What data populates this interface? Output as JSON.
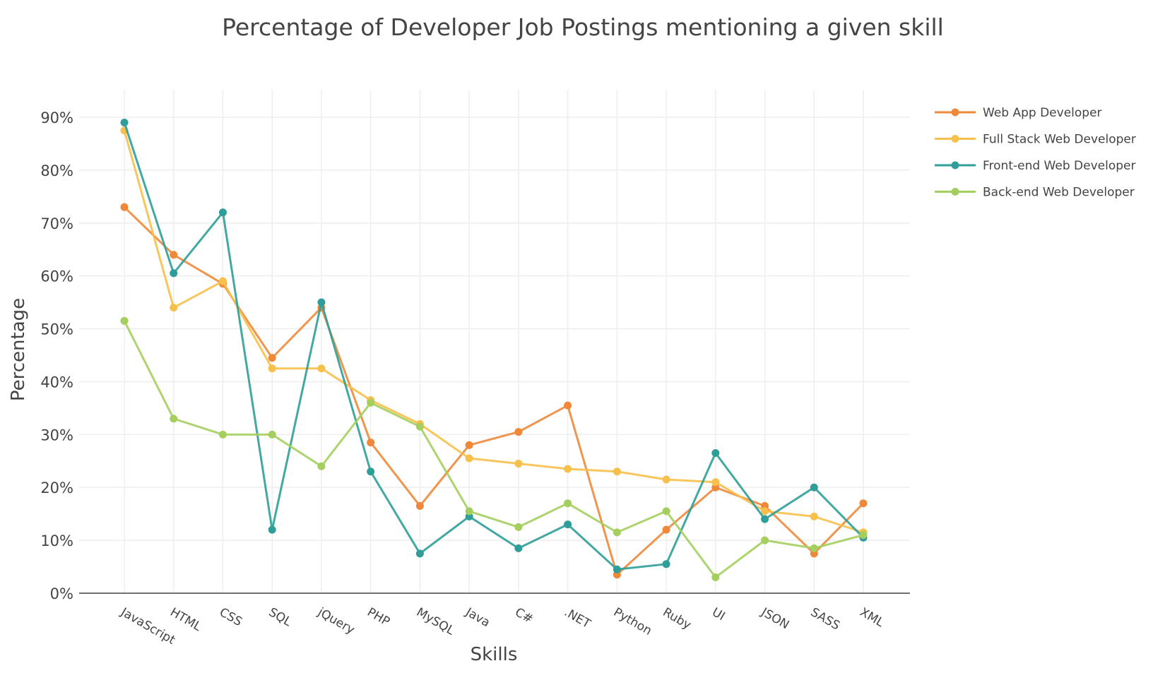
{
  "chart_data": {
    "type": "line",
    "title": "Percentage of Developer Job Postings mentioning a given skill",
    "xlabel": "Skills",
    "ylabel": "Percentage",
    "ylim": [
      0,
      90
    ],
    "yticks": [
      0,
      10,
      20,
      30,
      40,
      50,
      60,
      70,
      80,
      90
    ],
    "ytick_labels": [
      "0%",
      "10%",
      "20%",
      "30%",
      "40%",
      "50%",
      "60%",
      "70%",
      "80%",
      "90%"
    ],
    "categories": [
      "JavaScript",
      "HTML",
      "CSS",
      "SQL",
      "jQuery",
      "PHP",
      "MySQL",
      "Java",
      "C#",
      ".NET",
      "Python",
      "Ruby",
      "UI",
      "JSON",
      "SASS",
      "XML"
    ],
    "grid": true,
    "legend_position": "top-right",
    "series": [
      {
        "name": "Web App Developer",
        "color": "#f0883a",
        "values": [
          73,
          64,
          58.5,
          44.5,
          54,
          28.5,
          16.5,
          28,
          30.5,
          35.5,
          3.5,
          12,
          20,
          16.5,
          7.5,
          17
        ]
      },
      {
        "name": "Full Stack Web Developer",
        "color": "#f7c04a",
        "values": [
          87.5,
          54,
          59,
          42.5,
          42.5,
          36.5,
          32,
          25.5,
          24.5,
          23.5,
          23,
          21.5,
          21,
          15.5,
          14.5,
          11.5
        ]
      },
      {
        "name": "Front-end Web Developer",
        "color": "#2f9e98",
        "values": [
          89,
          60.5,
          72,
          12,
          55,
          23,
          7.5,
          14.5,
          8.5,
          13,
          4.5,
          5.5,
          26.5,
          14,
          20,
          10.5
        ]
      },
      {
        "name": "Back-end Web Developer",
        "color": "#a4cf5e",
        "values": [
          51.5,
          33,
          30,
          30,
          24,
          36,
          31.5,
          15.5,
          12.5,
          17,
          11.5,
          15.5,
          3,
          10,
          8.5,
          11
        ]
      }
    ]
  }
}
